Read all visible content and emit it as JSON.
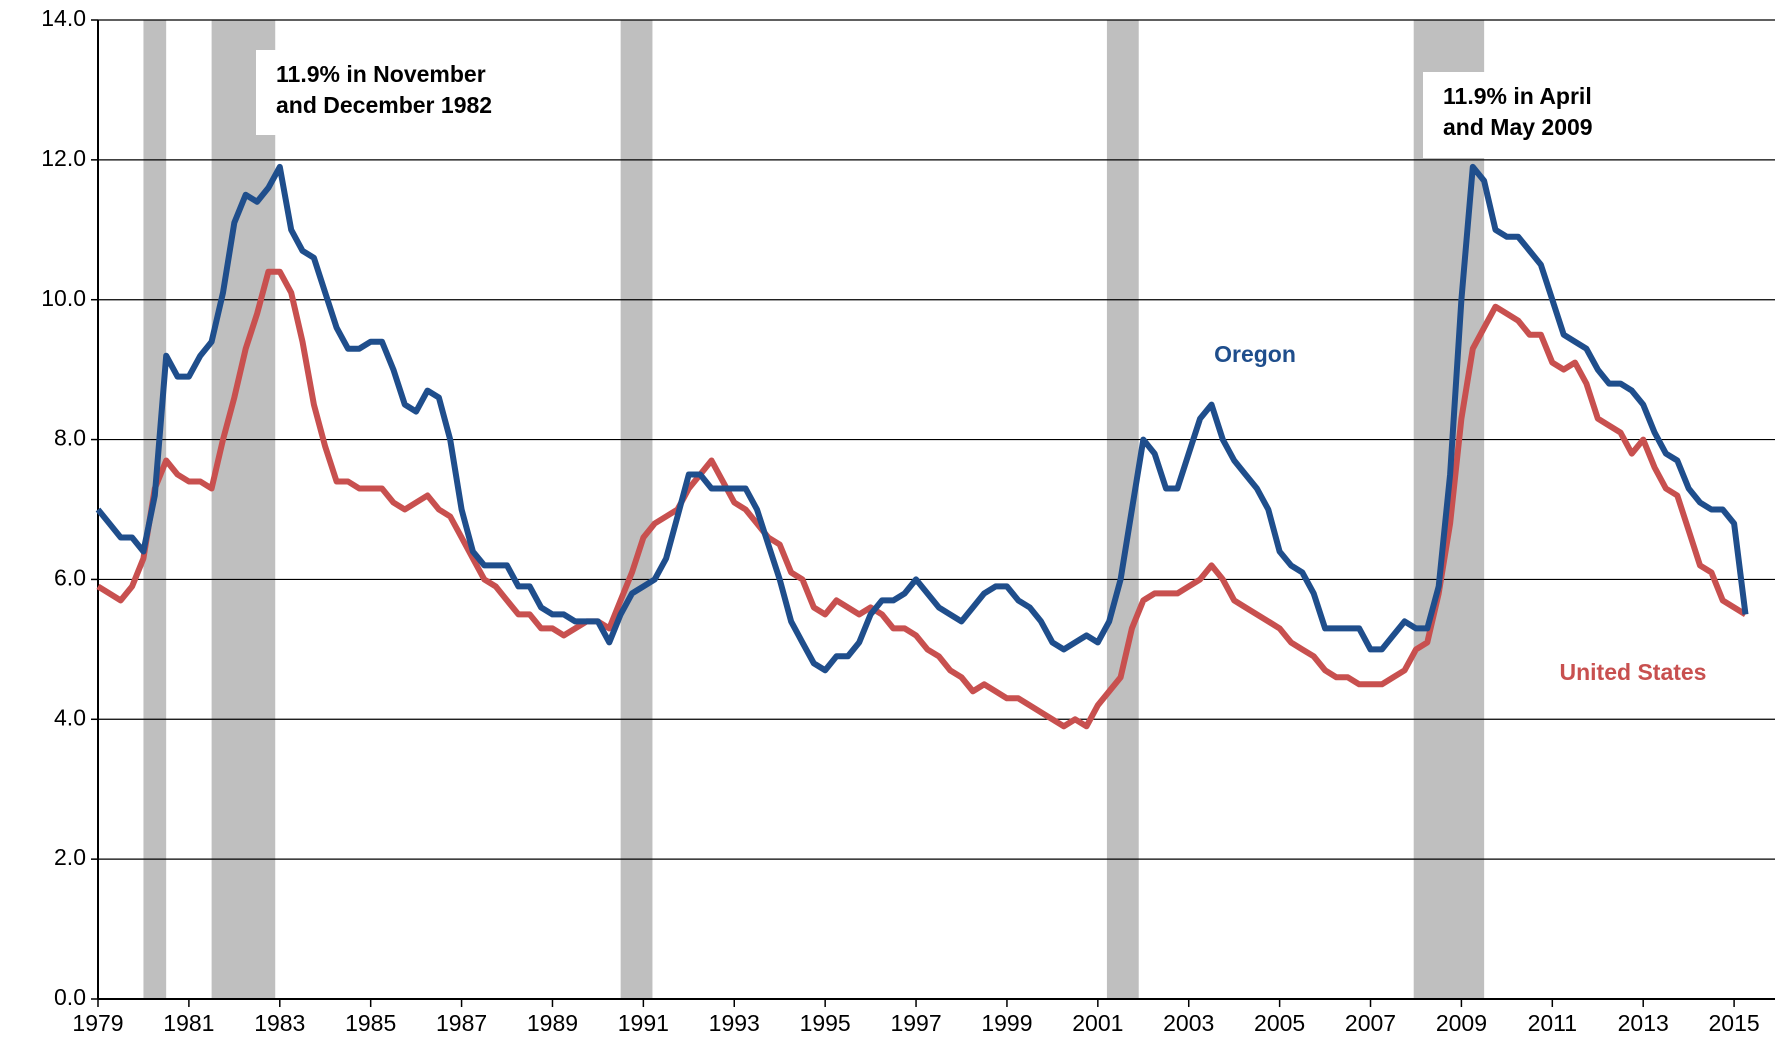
{
  "chart_data": {
    "type": "line",
    "x": [
      1979,
      1979.25,
      1979.5,
      1979.75,
      1980,
      1980.25,
      1980.5,
      1980.75,
      1981,
      1981.25,
      1981.5,
      1981.75,
      1982,
      1982.25,
      1982.5,
      1982.75,
      1983,
      1983.25,
      1983.5,
      1983.75,
      1984,
      1984.25,
      1984.5,
      1984.75,
      1985,
      1985.25,
      1985.5,
      1985.75,
      1986,
      1986.25,
      1986.5,
      1986.75,
      1987,
      1987.25,
      1987.5,
      1987.75,
      1988,
      1988.25,
      1988.5,
      1988.75,
      1989,
      1989.25,
      1989.5,
      1989.75,
      1990,
      1990.25,
      1990.5,
      1990.75,
      1991,
      1991.25,
      1991.5,
      1991.75,
      1992,
      1992.25,
      1992.5,
      1992.75,
      1993,
      1993.25,
      1993.5,
      1993.75,
      1994,
      1994.25,
      1994.5,
      1994.75,
      1995,
      1995.25,
      1995.5,
      1995.75,
      1996,
      1996.25,
      1996.5,
      1996.75,
      1997,
      1997.25,
      1997.5,
      1997.75,
      1998,
      1998.25,
      1998.5,
      1998.75,
      1999,
      1999.25,
      1999.5,
      1999.75,
      2000,
      2000.25,
      2000.5,
      2000.75,
      2001,
      2001.25,
      2001.5,
      2001.75,
      2002,
      2002.25,
      2002.5,
      2002.75,
      2003,
      2003.25,
      2003.5,
      2003.75,
      2004,
      2004.25,
      2004.5,
      2004.75,
      2005,
      2005.25,
      2005.5,
      2005.75,
      2006,
      2006.25,
      2006.5,
      2006.75,
      2007,
      2007.25,
      2007.5,
      2007.75,
      2008,
      2008.25,
      2008.5,
      2008.75,
      2009,
      2009.25,
      2009.5,
      2009.75,
      2010,
      2010.25,
      2010.5,
      2010.75,
      2011,
      2011.25,
      2011.5,
      2011.75,
      2012,
      2012.25,
      2012.5,
      2012.75,
      2013,
      2013.25,
      2013.5,
      2013.75,
      2014,
      2014.25,
      2014.5,
      2014.75,
      2015,
      2015.25
    ],
    "series": [
      {
        "name": "Oregon",
        "color": "#1f4e8c",
        "values": [
          7.0,
          6.8,
          6.6,
          6.6,
          6.4,
          7.2,
          9.2,
          8.9,
          8.9,
          9.2,
          9.4,
          10.1,
          11.1,
          11.5,
          11.4,
          11.6,
          11.9,
          11.0,
          10.7,
          10.6,
          10.1,
          9.6,
          9.3,
          9.3,
          9.4,
          9.4,
          9.0,
          8.5,
          8.4,
          8.7,
          8.6,
          8.0,
          7.0,
          6.4,
          6.2,
          6.2,
          6.2,
          5.9,
          5.9,
          5.6,
          5.5,
          5.5,
          5.4,
          5.4,
          5.4,
          5.1,
          5.5,
          5.8,
          5.9,
          6.0,
          6.3,
          6.9,
          7.5,
          7.5,
          7.3,
          7.3,
          7.3,
          7.3,
          7.0,
          6.5,
          6.0,
          5.4,
          5.1,
          4.8,
          4.7,
          4.9,
          4.9,
          5.1,
          5.5,
          5.7,
          5.7,
          5.8,
          6.0,
          5.8,
          5.6,
          5.5,
          5.4,
          5.6,
          5.8,
          5.9,
          5.9,
          5.7,
          5.6,
          5.4,
          5.1,
          5.0,
          5.1,
          5.2,
          5.1,
          5.4,
          6.0,
          7.0,
          8.0,
          7.8,
          7.3,
          7.3,
          7.8,
          8.3,
          8.5,
          8.0,
          7.7,
          7.5,
          7.3,
          7.0,
          6.4,
          6.2,
          6.1,
          5.8,
          5.3,
          5.3,
          5.3,
          5.3,
          5.0,
          5.0,
          5.2,
          5.4,
          5.3,
          5.3,
          5.9,
          7.5,
          10.0,
          11.9,
          11.7,
          11.0,
          10.9,
          10.9,
          10.7,
          10.5,
          10.0,
          9.5,
          9.4,
          9.3,
          9.0,
          8.8,
          8.8,
          8.7,
          8.5,
          8.1,
          7.8,
          7.7,
          7.3,
          7.1,
          7.0,
          7.0,
          6.8,
          5.5
        ]
      },
      {
        "name": "United States",
        "color": "#c8504f",
        "values": [
          5.9,
          5.8,
          5.7,
          5.9,
          6.3,
          7.3,
          7.7,
          7.5,
          7.4,
          7.4,
          7.3,
          8.0,
          8.6,
          9.3,
          9.8,
          10.4,
          10.4,
          10.1,
          9.4,
          8.5,
          7.9,
          7.4,
          7.4,
          7.3,
          7.3,
          7.3,
          7.1,
          7.0,
          7.1,
          7.2,
          7.0,
          6.9,
          6.6,
          6.3,
          6.0,
          5.9,
          5.7,
          5.5,
          5.5,
          5.3,
          5.3,
          5.2,
          5.3,
          5.4,
          5.4,
          5.3,
          5.7,
          6.1,
          6.6,
          6.8,
          6.9,
          7.0,
          7.3,
          7.5,
          7.7,
          7.4,
          7.1,
          7.0,
          6.8,
          6.6,
          6.5,
          6.1,
          6.0,
          5.6,
          5.5,
          5.7,
          5.6,
          5.5,
          5.6,
          5.5,
          5.3,
          5.3,
          5.2,
          5.0,
          4.9,
          4.7,
          4.6,
          4.4,
          4.5,
          4.4,
          4.3,
          4.3,
          4.2,
          4.1,
          4.0,
          3.9,
          4.0,
          3.9,
          4.2,
          4.4,
          4.6,
          5.3,
          5.7,
          5.8,
          5.8,
          5.8,
          5.9,
          6.0,
          6.2,
          6.0,
          5.7,
          5.6,
          5.5,
          5.4,
          5.3,
          5.1,
          5.0,
          4.9,
          4.7,
          4.6,
          4.6,
          4.5,
          4.5,
          4.5,
          4.6,
          4.7,
          5.0,
          5.1,
          5.8,
          6.8,
          8.3,
          9.3,
          9.6,
          9.9,
          9.8,
          9.7,
          9.5,
          9.5,
          9.1,
          9.0,
          9.1,
          8.8,
          8.3,
          8.2,
          8.1,
          7.8,
          8.0,
          7.6,
          7.3,
          7.2,
          6.7,
          6.2,
          6.1,
          5.7,
          5.6,
          5.5
        ]
      }
    ],
    "recession_shading": [
      [
        1980.0,
        1980.5
      ],
      [
        1981.5,
        1982.9
      ],
      [
        1990.5,
        1991.2
      ],
      [
        2001.2,
        2001.9
      ],
      [
        2007.95,
        2009.5
      ]
    ],
    "shading_color": "#bfbfbf",
    "annotations": [
      {
        "lines": [
          "11.9% in November",
          "and December 1982"
        ]
      },
      {
        "lines": [
          "11.9% in April",
          "and May 2009"
        ]
      }
    ],
    "xlim": [
      1979,
      2015.9
    ],
    "xticks": [
      1979,
      1981,
      1983,
      1985,
      1987,
      1989,
      1991,
      1993,
      1995,
      1997,
      1999,
      2001,
      2003,
      2005,
      2007,
      2009,
      2011,
      2013,
      2015
    ],
    "ylim": [
      0,
      14
    ],
    "yticks": [
      {
        "value": 0,
        "label": "0.0"
      },
      {
        "value": 2,
        "label": "2.0"
      },
      {
        "value": 4,
        "label": "4.0"
      },
      {
        "value": 6,
        "label": "6.0"
      },
      {
        "value": 8,
        "label": "8.0"
      },
      {
        "value": 10,
        "label": "10.0"
      },
      {
        "value": 12,
        "label": "12.0"
      },
      {
        "value": 14,
        "label": "14.0"
      }
    ],
    "grid": true
  }
}
